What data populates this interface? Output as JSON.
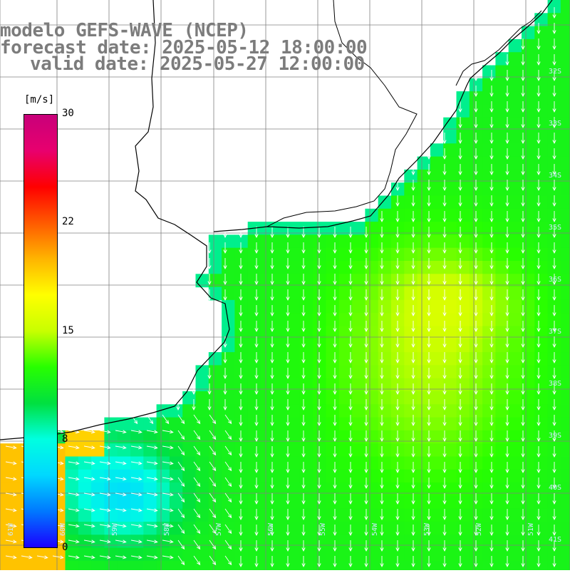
{
  "header": {
    "line1": "modelo GEFS-WAVE (NCEP)",
    "line2": "forecast date: 2025-05-12 18:00:00",
    "line3": "valid date: 2025-05-27 12:00:00"
  },
  "colorbar": {
    "unit": "[m/s]",
    "min": 0,
    "max": 30,
    "ticks": [
      "30",
      "22",
      "15",
      "8",
      "0"
    ],
    "tick_values": [
      30,
      22,
      15,
      8,
      0
    ],
    "colors": [
      "#1a00ff",
      "#0078ff",
      "#00d8ff",
      "#00ffe0",
      "#00e040",
      "#28ff00",
      "#c8ff00",
      "#ffff00",
      "#ffb400",
      "#ff5a00",
      "#ff0000",
      "#e8006e",
      "#c8007a"
    ]
  },
  "map": {
    "lat_labels": [
      "32S",
      "33S",
      "34S",
      "35S",
      "36S",
      "37S",
      "38S",
      "39S",
      "40S",
      "41S"
    ],
    "lon_labels": [
      "61W",
      "60W",
      "59W",
      "58W",
      "57W",
      "56W",
      "55W",
      "54W",
      "53W",
      "52W",
      "51W"
    ],
    "land_color": "#ffffff",
    "coast_color": "#000000",
    "grid_color": "#808080",
    "arrow_color": "#ffffff"
  }
}
